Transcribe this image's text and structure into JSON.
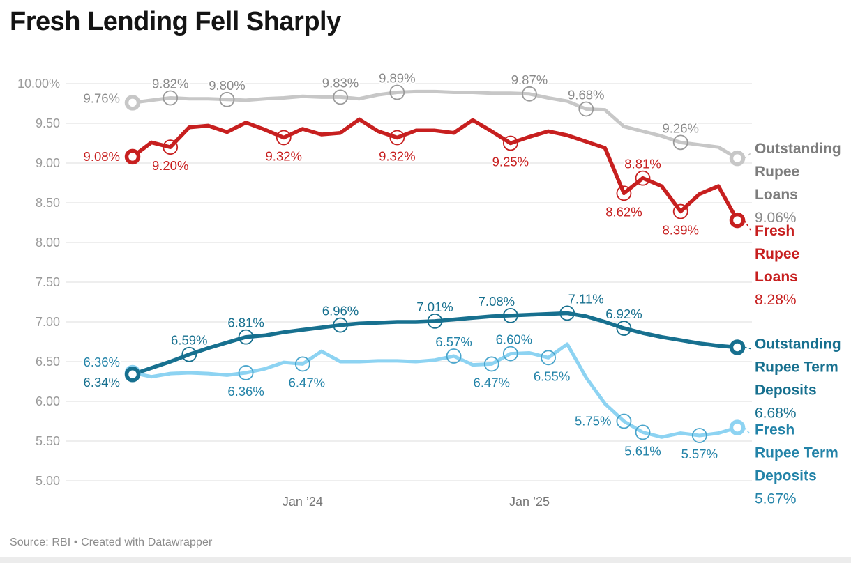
{
  "title": "Fresh Lending Fell Sharply",
  "footer": {
    "source": "Source: RBI • Created with Datawrapper"
  },
  "chart_data": {
    "type": "line",
    "n_points": 33,
    "x_axis": {
      "description": "monthly points, Apr 2023 through latest month",
      "ticks": [
        {
          "index": 9,
          "label": "Jan ’24"
        },
        {
          "index": 21,
          "label": "Jan ’25"
        }
      ]
    },
    "y_axis": {
      "min": 5.0,
      "max": 10.0,
      "step": 0.5,
      "tick_labels": [
        "10.00%",
        "9.50",
        "9.00",
        "8.50",
        "8.00",
        "7.50",
        "7.00",
        "6.50",
        "6.00",
        "5.50",
        "5.00"
      ],
      "grid": true
    },
    "series": [
      {
        "id": "outstanding-rupee-loans",
        "name": "Outstanding Rupee Loans",
        "color": "#c7c7c7",
        "label_color": "#8a8a8a",
        "ring_color": "#9a9a9a",
        "width": 5,
        "values": [
          9.76,
          9.79,
          9.82,
          9.81,
          9.81,
          9.8,
          9.79,
          9.81,
          9.82,
          9.84,
          9.83,
          9.83,
          9.81,
          9.86,
          9.89,
          9.9,
          9.9,
          9.89,
          9.89,
          9.88,
          9.88,
          9.87,
          9.82,
          9.78,
          9.68,
          9.67,
          9.46,
          9.4,
          9.34,
          9.26,
          9.23,
          9.2,
          9.06
        ],
        "labeled_points": [
          {
            "i": 0,
            "text": "9.76%",
            "pos": "left",
            "dy": -6
          },
          {
            "i": 2,
            "text": "9.82%",
            "pos": "above"
          },
          {
            "i": 5,
            "text": "9.80%",
            "pos": "above"
          },
          {
            "i": 11,
            "text": "9.83%",
            "pos": "above"
          },
          {
            "i": 14,
            "text": "9.89%",
            "pos": "above"
          },
          {
            "i": 21,
            "text": "9.87%",
            "pos": "above"
          },
          {
            "i": 24,
            "text": "9.68%",
            "pos": "above"
          },
          {
            "i": 29,
            "text": "9.26%",
            "pos": "above"
          }
        ],
        "legend": {
          "lines": [
            "Outstanding",
            "Rupee",
            "Loans"
          ],
          "value": "9.06%",
          "name_color": "#7d7d7d",
          "value_color": "#8a8a8a",
          "dy": -7
        }
      },
      {
        "id": "fresh-rupee-loans",
        "name": "Fresh Rupee Loans",
        "color": "#c71f1f",
        "label_color": "#c71f1f",
        "ring_color": "#c71f1f",
        "width": 5.5,
        "values": [
          9.08,
          9.26,
          9.2,
          9.45,
          9.47,
          9.39,
          9.51,
          9.42,
          9.32,
          9.43,
          9.36,
          9.38,
          9.55,
          9.4,
          9.32,
          9.41,
          9.41,
          9.38,
          9.54,
          9.4,
          9.25,
          9.33,
          9.4,
          9.35,
          9.27,
          9.19,
          8.62,
          8.81,
          8.71,
          8.39,
          8.61,
          8.71,
          8.28
        ],
        "labeled_points": [
          {
            "i": 0,
            "text": "9.08%",
            "pos": "left"
          },
          {
            "i": 2,
            "text": "9.20%",
            "pos": "below"
          },
          {
            "i": 8,
            "text": "9.32%",
            "pos": "below"
          },
          {
            "i": 14,
            "text": "9.32%",
            "pos": "below"
          },
          {
            "i": 20,
            "text": "9.25%",
            "pos": "below"
          },
          {
            "i": 26,
            "text": "8.62%",
            "pos": "below"
          },
          {
            "i": 27,
            "text": "8.81%",
            "pos": "above"
          },
          {
            "i": 29,
            "text": "8.39%",
            "pos": "below"
          }
        ],
        "legend": {
          "lines": [
            "Fresh",
            "Rupee",
            "Loans"
          ],
          "value": "8.28%",
          "name_color": "#c71f1f",
          "value_color": "#c71f1f",
          "dy": 22
        }
      },
      {
        "id": "fresh-rupee-term-deposits",
        "name": "Fresh Rupee Term Deposits",
        "color": "#8dd3f2",
        "label_color": "#2383a8",
        "ring_color": "#49a5cc",
        "width": 5,
        "values": [
          6.36,
          6.31,
          6.35,
          6.36,
          6.35,
          6.33,
          6.36,
          6.41,
          6.49,
          6.47,
          6.63,
          6.5,
          6.5,
          6.51,
          6.51,
          6.5,
          6.52,
          6.57,
          6.46,
          6.47,
          6.6,
          6.61,
          6.55,
          6.72,
          6.3,
          5.97,
          5.75,
          5.61,
          5.55,
          5.6,
          5.57,
          5.6,
          5.67
        ],
        "labeled_points": [
          {
            "i": 0,
            "text": "6.36%",
            "pos": "left",
            "dy": -15
          },
          {
            "i": 6,
            "text": "6.36%",
            "pos": "below"
          },
          {
            "i": 9,
            "text": "6.47%",
            "pos": "below",
            "dx": 6
          },
          {
            "i": 17,
            "text": "6.57%",
            "pos": "above"
          },
          {
            "i": 19,
            "text": "6.47%",
            "pos": "below"
          },
          {
            "i": 20,
            "text": "6.60%",
            "pos": "above",
            "dx": 5
          },
          {
            "i": 22,
            "text": "6.55%",
            "pos": "below",
            "dx": 5
          },
          {
            "i": 26,
            "text": "5.75%",
            "pos": "left"
          },
          {
            "i": 27,
            "text": "5.61%",
            "pos": "below"
          },
          {
            "i": 30,
            "text": "5.57%",
            "pos": "below"
          }
        ],
        "legend": {
          "lines": [
            "Fresh",
            "Rupee Term",
            "Deposits"
          ],
          "value": "5.67%",
          "name_color": "#2383a8",
          "value_color": "#2383a8",
          "dy": 10
        }
      },
      {
        "id": "outstanding-rupee-term-deposits",
        "name": "Outstanding Rupee Term Deposits",
        "color": "#17708f",
        "label_color": "#17708f",
        "ring_color": "#17708f",
        "width": 5.5,
        "values": [
          6.34,
          6.42,
          6.5,
          6.59,
          6.67,
          6.74,
          6.81,
          6.83,
          6.87,
          6.9,
          6.93,
          6.96,
          6.98,
          6.99,
          7.0,
          7.0,
          7.01,
          7.03,
          7.05,
          7.07,
          7.08,
          7.09,
          7.1,
          7.11,
          7.07,
          7.0,
          6.92,
          6.86,
          6.81,
          6.77,
          6.73,
          6.7,
          6.68
        ],
        "labeled_points": [
          {
            "i": 0,
            "text": "6.34%",
            "pos": "left",
            "dy": 12
          },
          {
            "i": 3,
            "text": "6.59%",
            "pos": "above"
          },
          {
            "i": 6,
            "text": "6.81%",
            "pos": "above"
          },
          {
            "i": 11,
            "text": "6.96%",
            "pos": "above"
          },
          {
            "i": 16,
            "text": "7.01%",
            "pos": "above"
          },
          {
            "i": 20,
            "text": "7.08%",
            "pos": "above",
            "dx": -20
          },
          {
            "i": 23,
            "text": "7.11%",
            "pos": "above",
            "dx": 27
          },
          {
            "i": 26,
            "text": "6.92%",
            "pos": "above"
          }
        ],
        "legend": {
          "lines": [
            "Outstanding",
            "Rupee Term",
            "Deposits"
          ],
          "value": "6.68%",
          "name_color": "#17708f",
          "value_color": "#17708f",
          "dy": 2
        }
      }
    ],
    "style": {
      "grid_color": "#e4e4e4",
      "y_label_color": "#9b9b9b",
      "x_label_color": "#757575",
      "background": "#ffffff"
    }
  }
}
